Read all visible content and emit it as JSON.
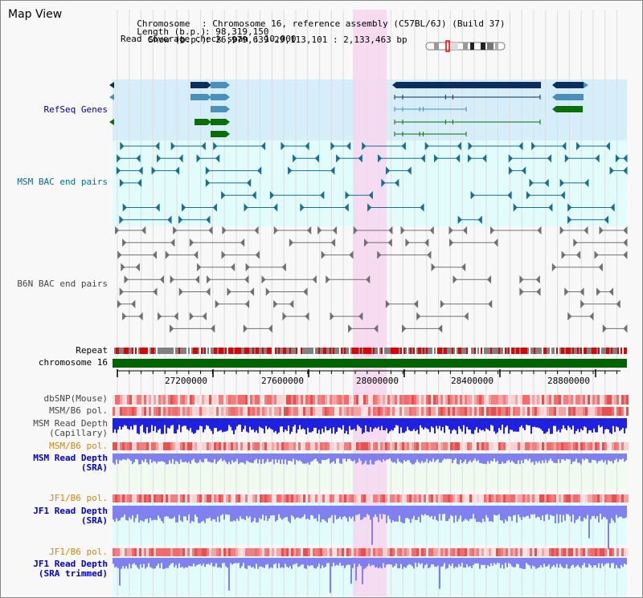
{
  "view_title": "Map View",
  "info": {
    "chromosome_key": "Chromosome",
    "chromosome_val": ": Chromosome 16, reference assembly (C57BL/6J) (Build 37)",
    "length_key": "Length (b.p.)",
    "length_val": ": 98,319,150",
    "show_key": "Show (b.p.)",
    "show_val": ": 26,979,639-29,113,101 : 2,133,463 bp",
    "coverage": "Read coverage check span : 10,000"
  },
  "tracks": {
    "refseq": "RefSeq Genes",
    "msm_bac": "MSM BAC end pairs",
    "b6n_bac": "B6N BAC end pairs",
    "repeat": "Repeat",
    "chromosome": "chromosome 16",
    "dbsnp": "dbSNP(Mouse)",
    "msm_b6_pol": "MSM/B6 pol.",
    "msm_rd_cap_1": "MSM Read Depth",
    "msm_rd_cap_2": "(Capillary)",
    "msm_b6_pol2": "MSM/B6 pol.",
    "msm_rd_sra_1": "MSM Read Depth",
    "msm_rd_sra_2": "(SRA)",
    "jf1_b6_pol": "JF1/B6 pol.",
    "jf1_rd_1": "JF1 Read Depth",
    "jf1_rd_2": "(SRA)",
    "jf1_b6_pol2": "JF1/B6 pol.",
    "jf1_rd_trim_1": "JF1 Read Depth",
    "jf1_rd_trim_2": "(SRA trimmed)"
  },
  "axis_ticks": [
    "27200000",
    "27600000",
    "28000000",
    "28400000",
    "28800000"
  ],
  "colors": {
    "refseq_bg": "#d6eef9",
    "bac_bg": "#e2fbfb",
    "highlight": "#f7d6f0",
    "gene_dark": "#0b2e5e",
    "gene_mid": "#4a90b8",
    "gene_green": "#0a6e0a",
    "chromosome_bar": "#006400",
    "repeat_red": "#e00000",
    "repeat_gray": "#808080",
    "depth_blue": "#2020e0",
    "depth_light": "#8080f0"
  }
}
